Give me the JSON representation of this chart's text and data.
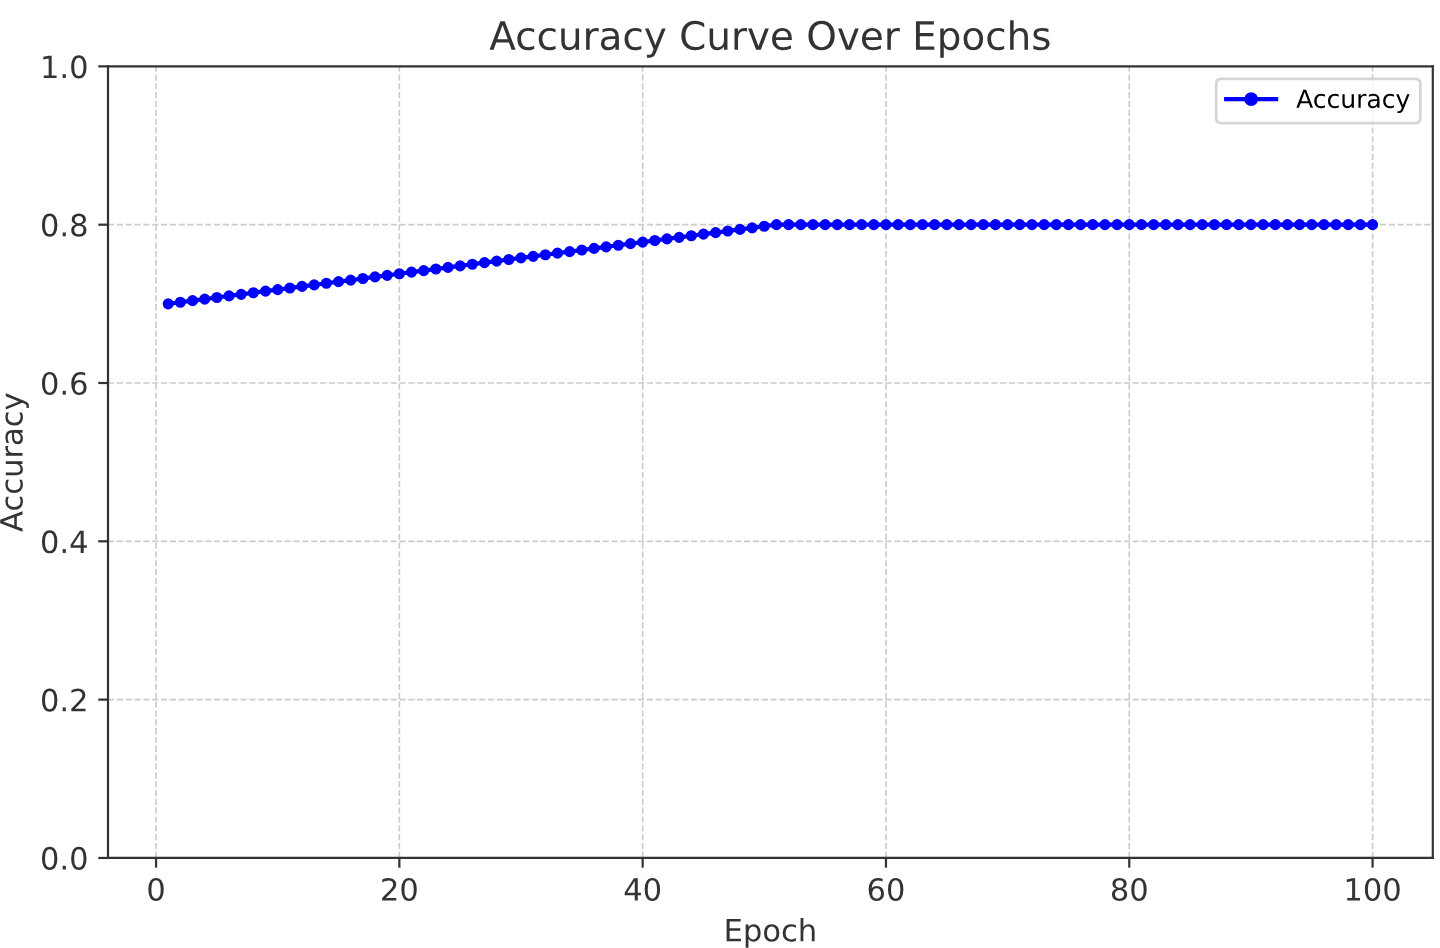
{
  "chart_data": {
    "type": "line",
    "title": "Accuracy Curve Over Epochs",
    "xlabel": "Epoch",
    "ylabel": "Accuracy",
    "x": [
      1,
      2,
      3,
      4,
      5,
      6,
      7,
      8,
      9,
      10,
      11,
      12,
      13,
      14,
      15,
      16,
      17,
      18,
      19,
      20,
      21,
      22,
      23,
      24,
      25,
      26,
      27,
      28,
      29,
      30,
      31,
      32,
      33,
      34,
      35,
      36,
      37,
      38,
      39,
      40,
      41,
      42,
      43,
      44,
      45,
      46,
      47,
      48,
      49,
      50,
      51,
      52,
      53,
      54,
      55,
      56,
      57,
      58,
      59,
      60,
      61,
      62,
      63,
      64,
      65,
      66,
      67,
      68,
      69,
      70,
      71,
      72,
      73,
      74,
      75,
      76,
      77,
      78,
      79,
      80,
      81,
      82,
      83,
      84,
      85,
      86,
      87,
      88,
      89,
      90,
      91,
      92,
      93,
      94,
      95,
      96,
      97,
      98,
      99,
      100
    ],
    "series": [
      {
        "name": "Accuracy",
        "color": "#0000ff",
        "values": [
          0.7,
          0.702,
          0.704,
          0.706,
          0.708,
          0.71,
          0.712,
          0.714,
          0.716,
          0.718,
          0.72,
          0.722,
          0.724,
          0.726,
          0.728,
          0.73,
          0.732,
          0.734,
          0.736,
          0.738,
          0.74,
          0.742,
          0.744,
          0.746,
          0.748,
          0.75,
          0.752,
          0.754,
          0.756,
          0.758,
          0.76,
          0.762,
          0.764,
          0.766,
          0.768,
          0.77,
          0.772,
          0.774,
          0.776,
          0.778,
          0.78,
          0.782,
          0.784,
          0.786,
          0.788,
          0.79,
          0.792,
          0.794,
          0.796,
          0.798,
          0.8,
          0.8,
          0.8,
          0.8,
          0.8,
          0.8,
          0.8,
          0.8,
          0.8,
          0.8,
          0.8,
          0.8,
          0.8,
          0.8,
          0.8,
          0.8,
          0.8,
          0.8,
          0.8,
          0.8,
          0.8,
          0.8,
          0.8,
          0.8,
          0.8,
          0.8,
          0.8,
          0.8,
          0.8,
          0.8,
          0.8,
          0.8,
          0.8,
          0.8,
          0.8,
          0.8,
          0.8,
          0.8,
          0.8,
          0.8,
          0.8,
          0.8,
          0.8,
          0.8,
          0.8,
          0.8,
          0.8,
          0.8,
          0.8,
          0.8
        ]
      }
    ],
    "xlim": [
      -3.95,
      104.95
    ],
    "xticks": [
      0,
      20,
      40,
      60,
      80,
      100
    ],
    "ylim": [
      0,
      1.0
    ],
    "yticks": [
      {
        "value": 0,
        "label": "0.0"
      },
      {
        "value": 0.2,
        "label": "0.2"
      },
      {
        "value": 0.4,
        "label": "0.4"
      },
      {
        "value": 0.6,
        "label": "0.6"
      },
      {
        "value": 0.8,
        "label": "0.8"
      },
      {
        "value": 1.0,
        "label": "1.0"
      }
    ],
    "grid": true,
    "legend": "top right",
    "marker": "circle",
    "line_style": "solid"
  }
}
